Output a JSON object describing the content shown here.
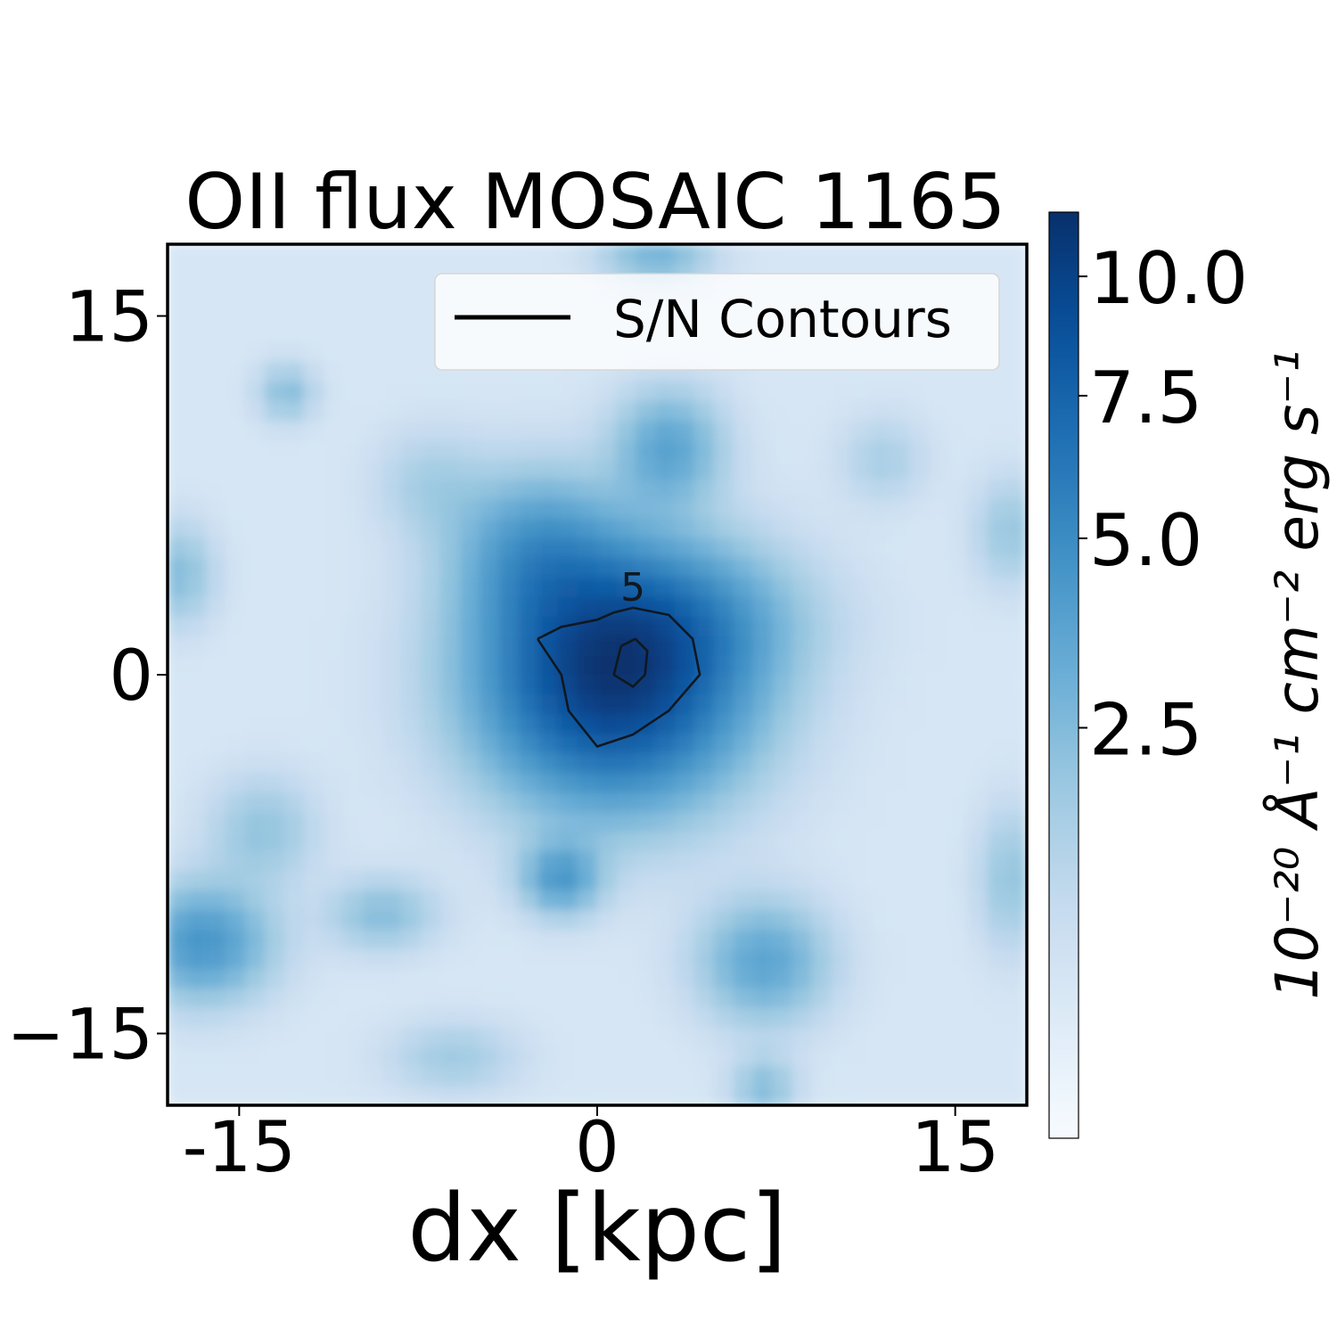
{
  "chart_data": {
    "type": "heatmap",
    "title": "OII flux MOSAIC 1165",
    "xlabel": "dx [kpc]",
    "ylabel": "",
    "xlim": [
      -18,
      18
    ],
    "ylim": [
      -18,
      18
    ],
    "x_ticks": [
      {
        "value": -15,
        "label": "-15"
      },
      {
        "value": 0,
        "label": "0"
      },
      {
        "value": 15,
        "label": "15"
      }
    ],
    "y_ticks": [
      {
        "value": 15,
        "label": "15"
      },
      {
        "value": 0,
        "label": "0"
      },
      {
        "value": -15,
        "label": "−15"
      }
    ],
    "grid": false,
    "colormap": "Blues",
    "colormap_colors": [
      "#f7fbff",
      "#deebf7",
      "#c6dbef",
      "#9ecae1",
      "#6baed6",
      "#4292c6",
      "#2171b5",
      "#08519c",
      "#08306b"
    ],
    "colorbar": {
      "label": "10⁻²⁰ Å⁻¹ cm⁻² erg s⁻¹",
      "range": [
        0.3,
        11.5
      ],
      "ticks": [
        {
          "value": 2.5,
          "label": "2.5"
        },
        {
          "value": 5.0,
          "label": "5.0"
        },
        {
          "value": 7.5,
          "label": "7.5"
        },
        {
          "value": 10.0,
          "label": "10.0"
        }
      ]
    },
    "legend": {
      "placement": "upper right",
      "entries": [
        {
          "label": "S/N Contours",
          "color": "#000000"
        }
      ]
    },
    "peak": {
      "x": 0.7,
      "y": -0.2,
      "value": 11.0
    },
    "blobs": [
      {
        "x": 0.7,
        "y": -0.2,
        "amp": 10.0,
        "sx": 3.6,
        "sy": 3.3
      },
      {
        "x": -2.5,
        "y": 5.2,
        "amp": 3.2,
        "sx": 2.3,
        "sy": 2.2
      },
      {
        "x": 3.5,
        "y": 2.5,
        "amp": 2.2,
        "sx": 3.5,
        "sy": 2.0
      },
      {
        "x": 3.0,
        "y": 9.5,
        "amp": 3.0,
        "sx": 1.5,
        "sy": 1.6
      },
      {
        "x": -13.0,
        "y": 11.8,
        "amp": 1.8,
        "sx": 0.8,
        "sy": 0.8
      },
      {
        "x": 2.5,
        "y": 17.5,
        "amp": 2.2,
        "sx": 1.5,
        "sy": 0.9
      },
      {
        "x": -1.5,
        "y": -8.5,
        "amp": 3.5,
        "sx": 1.1,
        "sy": 1.0
      },
      {
        "x": -16.5,
        "y": -11.2,
        "amp": 3.8,
        "sx": 1.9,
        "sy": 1.6
      },
      {
        "x": 7.0,
        "y": -12.0,
        "amp": 3.0,
        "sx": 1.8,
        "sy": 1.7
      },
      {
        "x": -9.0,
        "y": -10.0,
        "amp": 1.8,
        "sx": 1.5,
        "sy": 1.0
      },
      {
        "x": -17.5,
        "y": 4.2,
        "amp": 1.8,
        "sx": 1.0,
        "sy": 1.4
      },
      {
        "x": -14.0,
        "y": -6.5,
        "amp": 1.5,
        "sx": 1.5,
        "sy": 1.5
      },
      {
        "x": 7.0,
        "y": -17.3,
        "amp": 1.8,
        "sx": 0.9,
        "sy": 0.9
      },
      {
        "x": 17.3,
        "y": -8.5,
        "amp": 1.5,
        "sx": 0.9,
        "sy": 2.0
      },
      {
        "x": 17.3,
        "y": 6.0,
        "amp": 1.4,
        "sx": 1.0,
        "sy": 1.5
      },
      {
        "x": -6.0,
        "y": -16.0,
        "amp": 1.2,
        "sx": 1.8,
        "sy": 1.0
      },
      {
        "x": 12.0,
        "y": 9.0,
        "amp": 1.0,
        "sx": 1.2,
        "sy": 1.2
      },
      {
        "x": -7.0,
        "y": 8.0,
        "amp": 1.0,
        "sx": 1.5,
        "sy": 1.5
      }
    ],
    "contours": [
      {
        "level": 5,
        "label": "5",
        "label_at": [
          1.5,
          3.1
        ],
        "points": [
          [
            -2.5,
            1.5
          ],
          [
            -1.5,
            2.0
          ],
          [
            0.0,
            2.3
          ],
          [
            0.7,
            2.6
          ],
          [
            1.5,
            2.8
          ],
          [
            3.0,
            2.5
          ],
          [
            4.0,
            1.5
          ],
          [
            4.3,
            0.0
          ],
          [
            3.0,
            -1.5
          ],
          [
            1.5,
            -2.5
          ],
          [
            0.0,
            -3.0
          ],
          [
            -1.2,
            -1.5
          ],
          [
            -1.5,
            0.0
          ],
          [
            -2.5,
            1.5
          ]
        ]
      },
      {
        "level": 10,
        "points": [
          [
            1.0,
            1.2
          ],
          [
            1.6,
            1.5
          ],
          [
            2.1,
            1.0
          ],
          [
            2.0,
            0.0
          ],
          [
            1.5,
            -0.5
          ],
          [
            0.7,
            0.0
          ],
          [
            1.0,
            1.2
          ]
        ]
      }
    ]
  }
}
